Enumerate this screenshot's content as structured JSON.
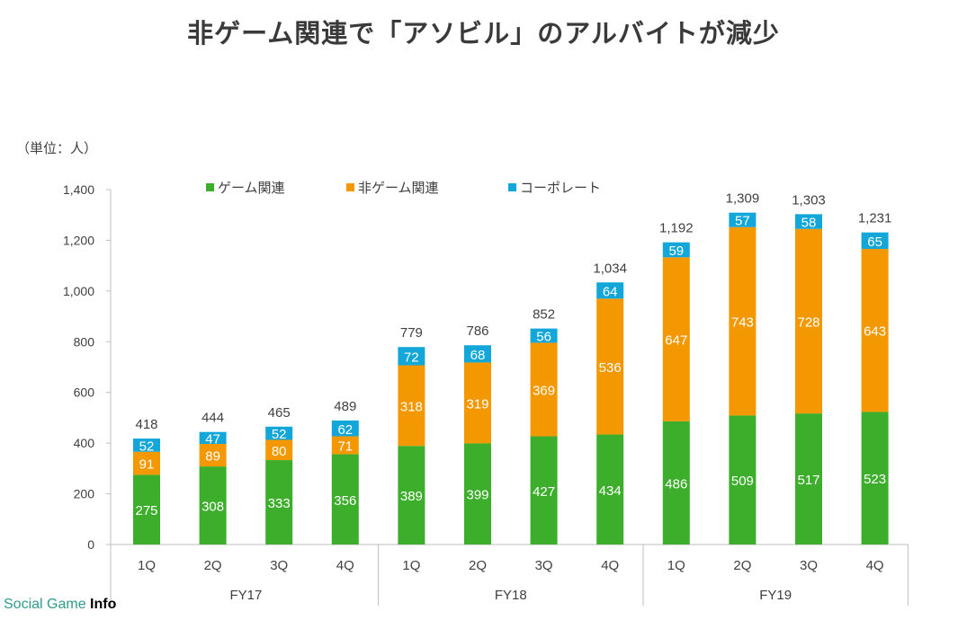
{
  "page": {
    "title": "非ゲーム関連で「アソビル」のアルバイトが減少",
    "unit": "（単位：人）",
    "watermark_a": "Social Game",
    "watermark_b": "Info"
  },
  "chart_data": {
    "type": "bar",
    "stacked": true,
    "categories": [
      "1Q",
      "2Q",
      "3Q",
      "4Q",
      "1Q",
      "2Q",
      "3Q",
      "4Q",
      "1Q",
      "2Q",
      "3Q",
      "4Q"
    ],
    "groups": [
      {
        "label": "FY17",
        "start": 0,
        "end": 3
      },
      {
        "label": "FY18",
        "start": 4,
        "end": 7
      },
      {
        "label": "FY19",
        "start": 8,
        "end": 11
      }
    ],
    "series": [
      {
        "name": "ゲーム関連",
        "color": "#3dae2b",
        "values": [
          275,
          308,
          333,
          356,
          389,
          399,
          427,
          434,
          486,
          509,
          517,
          523
        ]
      },
      {
        "name": "非ゲーム関連",
        "color": "#f39800",
        "values": [
          91,
          89,
          80,
          71,
          318,
          319,
          369,
          536,
          647,
          743,
          728,
          643
        ]
      },
      {
        "name": "コーポレート",
        "color": "#13a6d8",
        "values": [
          52,
          47,
          52,
          62,
          72,
          68,
          56,
          64,
          59,
          57,
          58,
          65
        ]
      }
    ],
    "totals": [
      "418",
      "444",
      "465",
      "489",
      "779",
      "786",
      "852",
      "1,034",
      "1,192",
      "1,309",
      "1,303",
      "1,231"
    ],
    "ylim": [
      0,
      1400
    ],
    "yticks": [
      0,
      200,
      400,
      600,
      800,
      1000,
      1200,
      1400
    ],
    "ytick_labels": [
      "0",
      "200",
      "400",
      "600",
      "800",
      "1,000",
      "1,200",
      "1,400"
    ],
    "legend_position": "top-left",
    "grid": false
  }
}
